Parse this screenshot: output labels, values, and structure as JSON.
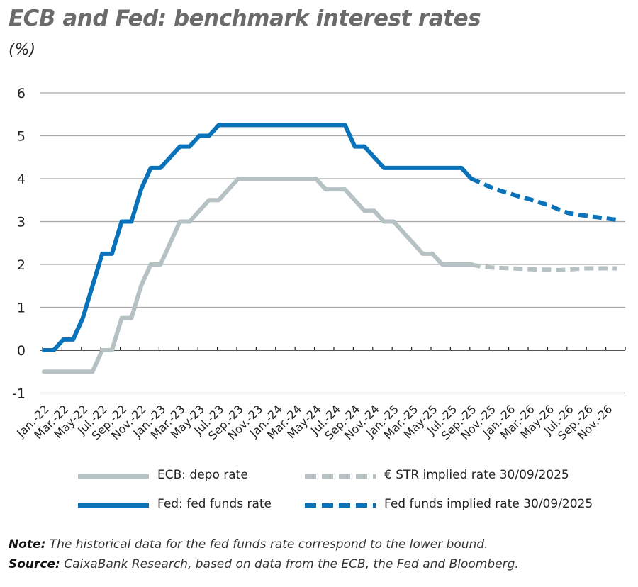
{
  "chart_data": {
    "type": "line",
    "title": "ECB and Fed: benchmark interest rates",
    "ylabel": "(%)",
    "ylim": [
      -1,
      6
    ],
    "yticks": [
      6,
      5,
      4,
      3,
      2,
      1,
      0,
      -1
    ],
    "grid": true,
    "xtick_labels": [
      "Jan.-22",
      "Mar.-22",
      "May-22",
      "Jul.-22",
      "Sep.-22",
      "Nov.-22",
      "Jan.-23",
      "Mar.-23",
      "May-23",
      "Jul.-23",
      "Sep.-23",
      "Nov.-23",
      "Jan.-24",
      "Mar.-24",
      "May-24",
      "Jul.-24",
      "Sep.-24",
      "Nov.-24",
      "Jan.-25",
      "Mar.-25",
      "May-25",
      "Jul.-25",
      "Sep.-25",
      "Nov.-25",
      "Jan.-26",
      "Mar.-26",
      "May-26",
      "Jul.-26",
      "Sep.-26",
      "Nov.-26"
    ],
    "x_start": "2022-01",
    "legend_position": "bottom",
    "series": [
      {
        "name": "ECB: depo rate",
        "color": "#b5c1c3",
        "style": "solid",
        "start": "2022-01",
        "values": [
          -0.5,
          -0.5,
          -0.5,
          -0.5,
          -0.5,
          -0.5,
          0,
          0,
          0.75,
          0.75,
          1.5,
          2.0,
          2.0,
          2.5,
          3.0,
          3.0,
          3.25,
          3.5,
          3.5,
          3.75,
          4.0,
          4.0,
          4.0,
          4.0,
          4.0,
          4.0,
          4.0,
          4.0,
          4.0,
          3.75,
          3.75,
          3.75,
          3.5,
          3.25,
          3.25,
          3.0,
          3.0,
          2.75,
          2.5,
          2.25,
          2.25,
          2.0,
          2.0,
          2.0,
          2.0
        ]
      },
      {
        "name": "Fed: fed funds rate",
        "color": "#0a72b9",
        "style": "solid",
        "start": "2022-01",
        "values": [
          0,
          0,
          0.25,
          0.25,
          0.75,
          1.5,
          2.25,
          2.25,
          3.0,
          3.0,
          3.75,
          4.25,
          4.25,
          4.5,
          4.75,
          4.75,
          5.0,
          5.0,
          5.25,
          5.25,
          5.25,
          5.25,
          5.25,
          5.25,
          5.25,
          5.25,
          5.25,
          5.25,
          5.25,
          5.25,
          5.25,
          5.25,
          4.75,
          4.75,
          4.5,
          4.25,
          4.25,
          4.25,
          4.25,
          4.25,
          4.25,
          4.25,
          4.25,
          4.25,
          4.0
        ]
      },
      {
        "name": "€ STR implied rate 30/09/2025",
        "color": "#b5c1c3",
        "style": "dashed",
        "start": "2025-09",
        "values": [
          2.0,
          1.95,
          1.93,
          1.92,
          1.91,
          1.9,
          1.89,
          1.88,
          1.88,
          1.87,
          1.88,
          1.9,
          1.91,
          1.91,
          1.91,
          1.91
        ]
      },
      {
        "name": "Fed funds implied rate 30/09/2025",
        "color": "#0a72b9",
        "style": "dashed",
        "start": "2025-09",
        "values": [
          4.0,
          3.9,
          3.8,
          3.72,
          3.65,
          3.58,
          3.52,
          3.45,
          3.38,
          3.28,
          3.2,
          3.16,
          3.13,
          3.1,
          3.07,
          3.04
        ]
      }
    ]
  },
  "notes": {
    "note_label": "Note:",
    "note_text": " The historical data for the fed funds rate correspond to the lower bound.",
    "source_label": "Source:",
    "source_text": " CaixaBank Research, based on data from the ECB, the Fed and Bloomberg."
  }
}
